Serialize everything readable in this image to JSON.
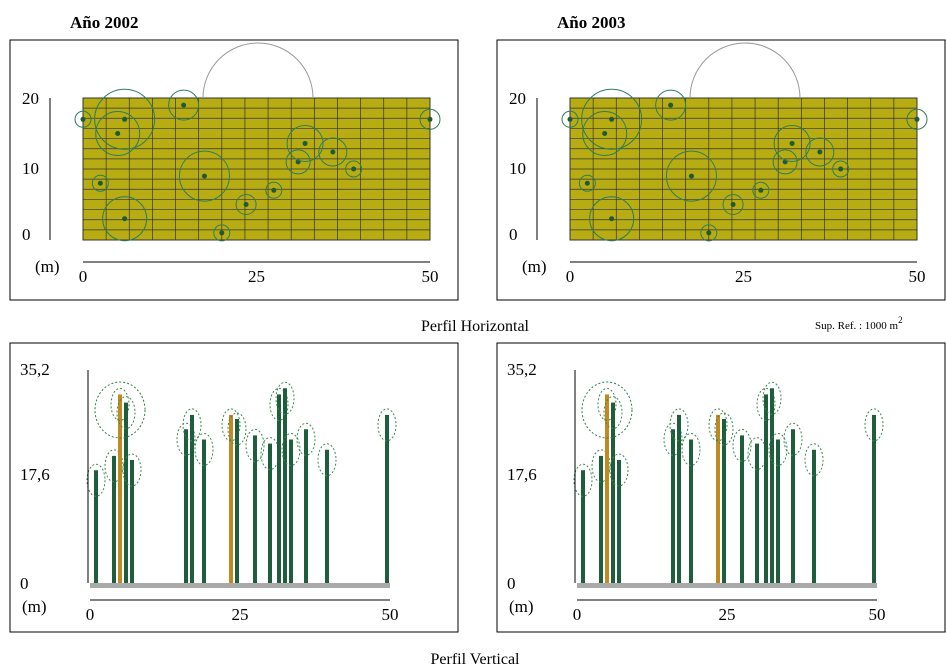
{
  "panels": [
    {
      "title": "Año 2002",
      "horizontal": {
        "unit": "(m)",
        "y_labels": [
          "20",
          "10",
          "0"
        ],
        "x_labels": [
          "0",
          "25",
          "50"
        ]
      },
      "vertical": {
        "unit": "(m)",
        "y_labels": [
          "35,2",
          "17,6",
          "0"
        ],
        "x_labels": [
          "0",
          "25",
          "50"
        ]
      }
    },
    {
      "title": "Año 2003",
      "horizontal": {
        "unit": "(m)",
        "y_labels": [
          "20",
          "10",
          "0"
        ],
        "x_labels": [
          "0",
          "25",
          "50"
        ]
      },
      "vertical": {
        "unit": "(m)",
        "y_labels": [
          "35,2",
          "17,6",
          "0"
        ],
        "x_labels": [
          "0",
          "25",
          "50"
        ]
      }
    }
  ],
  "captions": {
    "horizontal": "Perfil Horizontal",
    "vertical": "Perfil Vertical",
    "reference": "Sup. Ref. : 1000 m",
    "reference_exp": "2"
  }
}
